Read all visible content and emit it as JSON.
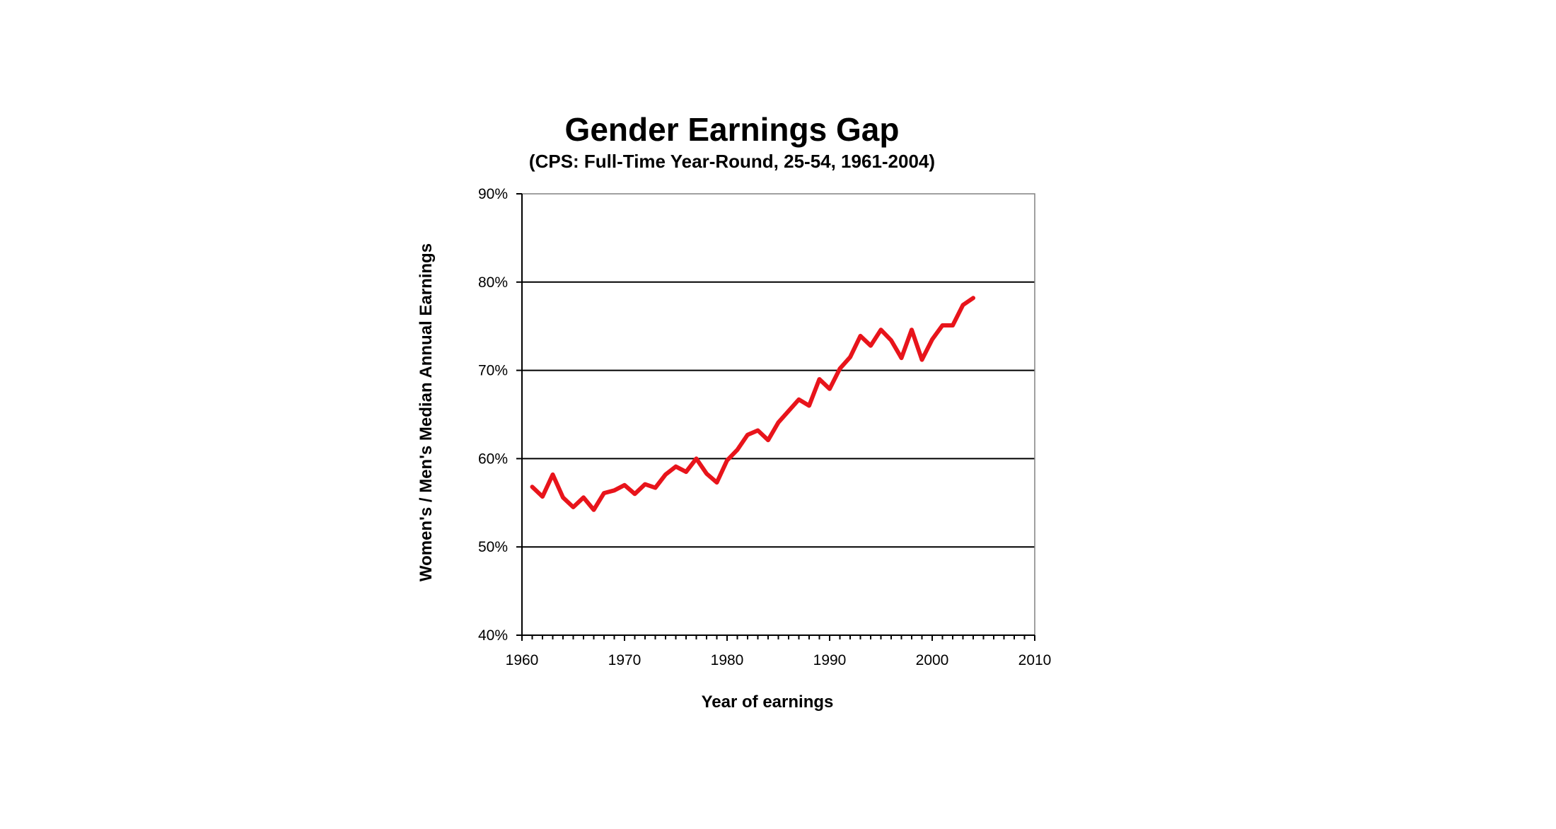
{
  "chart_data": {
    "type": "line",
    "title": "Gender Earnings Gap",
    "subtitle": "(CPS: Full-Time Year-Round, 25-54, 1961-2004)",
    "xlabel": "Year of earnings",
    "ylabel": "Women's / Men's Median Annual Earnings",
    "xlim": [
      1960,
      2010
    ],
    "ylim": [
      40,
      90
    ],
    "x_ticks": [
      1960,
      1970,
      1980,
      1990,
      2000,
      2010
    ],
    "x_tick_labels": [
      "1960",
      "1970",
      "1980",
      "1990",
      "2000",
      "2010"
    ],
    "y_ticks": [
      40,
      50,
      60,
      70,
      80,
      90
    ],
    "y_tick_labels": [
      "40%",
      "50%",
      "60%",
      "70%",
      "80%",
      "90%"
    ],
    "grid": "horizontal",
    "legend": "none",
    "series": [
      {
        "color": "#e8141b",
        "x": [
          1961,
          1962,
          1963,
          1964,
          1965,
          1966,
          1967,
          1968,
          1969,
          1970,
          1971,
          1972,
          1973,
          1974,
          1975,
          1976,
          1977,
          1978,
          1979,
          1980,
          1981,
          1982,
          1983,
          1984,
          1985,
          1986,
          1987,
          1988,
          1989,
          1990,
          1991,
          1992,
          1993,
          1994,
          1995,
          1996,
          1997,
          1998,
          1999,
          2000,
          2001,
          2002,
          2003,
          2004
        ],
        "y": [
          56.8,
          55.7,
          58.2,
          55.6,
          54.5,
          55.6,
          54.2,
          56.1,
          56.4,
          57.0,
          56.0,
          57.1,
          56.7,
          58.2,
          59.1,
          58.5,
          60.0,
          58.3,
          57.3,
          59.8,
          61.0,
          62.7,
          63.2,
          62.1,
          64.1,
          65.4,
          66.7,
          66.0,
          69.0,
          67.9,
          70.2,
          71.5,
          73.9,
          72.8,
          74.6,
          73.4,
          71.4,
          74.6,
          71.2,
          73.5,
          75.1,
          75.1,
          77.4,
          78.2
        ]
      }
    ]
  }
}
